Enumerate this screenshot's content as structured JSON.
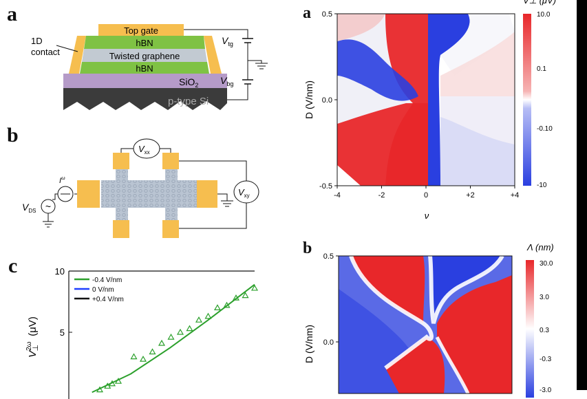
{
  "panels": {
    "left_a": "a",
    "left_b": "b",
    "left_c": "c",
    "right_a": "a",
    "right_b": "b"
  },
  "device": {
    "top_gate": "Top gate",
    "hbn_top": "hBN",
    "twisted_graphene": "Twisted graphene",
    "hbn_bottom": "hBN",
    "sio2": "SiO",
    "sio2_sub": "2",
    "psi": "p-type Si",
    "contact_1d_line1": "1D",
    "contact_1d_line2": "contact",
    "vtg": "V",
    "vtg_sub": "tg",
    "vbg": "V",
    "vbg_sub": "bg"
  },
  "circuit": {
    "vxx": "V",
    "vxx_sub": "xx",
    "vxy": "V",
    "vxy_sub": "xy",
    "vds": "V",
    "vds_sub": "DS",
    "current": "I",
    "current_sup": "ω",
    "tilde": "~"
  },
  "chart_data": [
    {
      "type": "heatmap",
      "panel": "a",
      "xlabel": "ν",
      "ylabel": "D (V/nm)",
      "xlim": [
        -4,
        4
      ],
      "ylim": [
        -0.5,
        0.5
      ],
      "xticks": [
        "-4",
        "-2",
        "0",
        "+2",
        "+4"
      ],
      "yticks": [
        "-0.5",
        "0.0",
        "0.5"
      ],
      "colorbar_title": "V⊥ (μV)",
      "colorbar_ticks": [
        "10.0",
        "0.1",
        "-0.10",
        "-10"
      ],
      "colors": {
        "positive": "#e8272a",
        "negative": "#2a3fe0",
        "zero": "#ffffff"
      }
    },
    {
      "type": "heatmap",
      "panel": "b",
      "xlabel": "",
      "ylabel": "D (V/nm)",
      "ylim": [
        null,
        0.5
      ],
      "yticks": [
        "0.0",
        "0.5"
      ],
      "colorbar_title": "Λ (nm)",
      "colorbar_ticks": [
        "30.0",
        "3.0",
        "0.3",
        "-0.3",
        "-3.0"
      ],
      "colors": {
        "positive": "#e8272a",
        "negative": "#2a3fe0",
        "zero": "#ffffff"
      }
    },
    {
      "type": "scatter",
      "panel": "c",
      "ylabel": "V⊥2ω (μV)",
      "ylabel_main": "V",
      "ylabel_sup": "2ω",
      "ylabel_sub": "⊥",
      "ylabel_unit": "(μV)",
      "ylim": [
        0,
        10
      ],
      "yticks": [
        "5",
        "10"
      ],
      "legend": [
        "-0.4 V/nm",
        "0 V/nm",
        "+0.4 V/nm"
      ],
      "series_colors": [
        "#2ca02c",
        "#1f3fff",
        "#111111"
      ],
      "x": [
        0.5,
        0.55,
        0.58,
        0.62,
        0.72,
        0.78,
        0.84,
        0.9,
        0.96,
        1.02,
        1.08,
        1.14,
        1.2,
        1.26,
        1.32,
        1.38,
        1.44,
        1.5
      ],
      "y": [
        0.3,
        0.6,
        0.8,
        1.0,
        3.0,
        2.8,
        3.4,
        4.1,
        4.6,
        5.0,
        5.3,
        6.0,
        6.3,
        7.0,
        7.2,
        7.8,
        8.0,
        8.6
      ],
      "fit": [
        [
          0.45,
          0.1
        ],
        [
          0.7,
          1.6
        ],
        [
          0.95,
          3.7
        ],
        [
          1.2,
          6.0
        ],
        [
          1.5,
          8.9
        ]
      ]
    }
  ]
}
